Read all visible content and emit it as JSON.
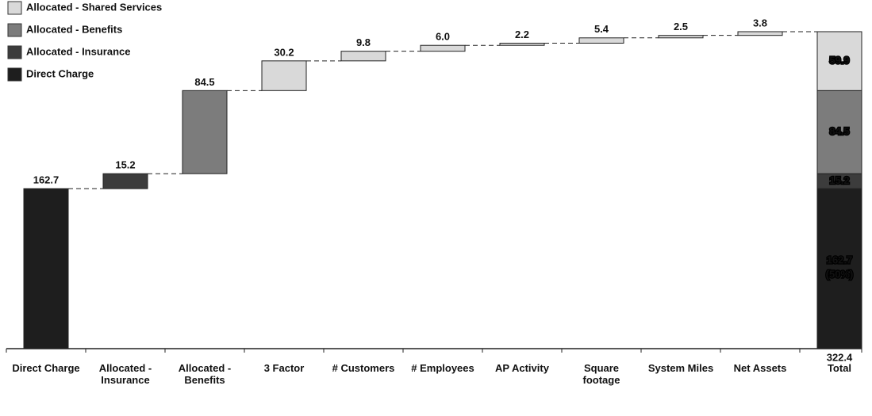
{
  "chart_data": {
    "type": "waterfall",
    "categories": [
      "Direct Charge",
      "Allocated - Insurance",
      "Allocated - Benefits",
      "3 Factor",
      "# Customers",
      "# Employees",
      "AP Activity",
      "Square footage",
      "System Miles",
      "Net Assets",
      "Total"
    ],
    "series": [
      {
        "name": "Direct Charge",
        "color": "#1e1e1e",
        "values": [
          162.7,
          null,
          null,
          null,
          null,
          null,
          null,
          null,
          null,
          null,
          162.7
        ]
      },
      {
        "name": "Allocated - Insurance",
        "color": "#3c3c3c",
        "values": [
          null,
          15.2,
          null,
          null,
          null,
          null,
          null,
          null,
          null,
          null,
          15.2
        ]
      },
      {
        "name": "Allocated - Benefits",
        "color": "#7c7c7c",
        "values": [
          null,
          null,
          84.5,
          null,
          null,
          null,
          null,
          null,
          null,
          null,
          84.5
        ]
      },
      {
        "name": "Allocated - Shared Services",
        "color": "#d9d9d9",
        "values": [
          null,
          null,
          null,
          30.2,
          9.8,
          6.0,
          2.2,
          5.4,
          2.5,
          3.8,
          59.9
        ]
      }
    ],
    "value_labels": {
      "series": [
        [
          "162.7",
          null,
          null,
          null,
          null,
          null,
          null,
          null,
          null,
          null,
          "162.7"
        ],
        [
          null,
          "15.2",
          null,
          null,
          null,
          null,
          null,
          null,
          null,
          null,
          "15.2"
        ],
        [
          null,
          null,
          "84.5",
          null,
          null,
          null,
          null,
          null,
          null,
          null,
          "84.5"
        ],
        [
          null,
          null,
          null,
          "30.2",
          "9.8",
          "6.0",
          "2.2",
          "5.4",
          "2.5",
          "3.8",
          "59.9"
        ]
      ]
    },
    "annotation": "(50%)",
    "total": 322.4,
    "ylim": [
      0,
      340
    ],
    "legend": "top-left"
  }
}
